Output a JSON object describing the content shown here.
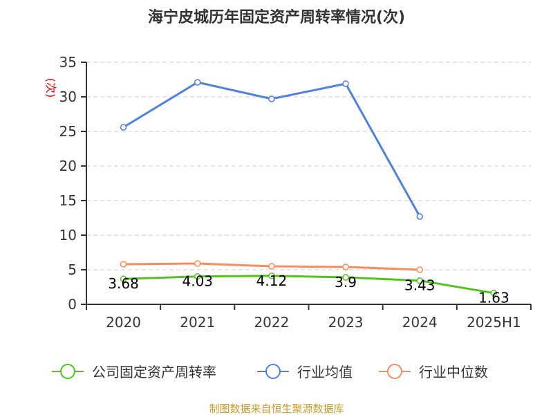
{
  "chart_data": {
    "type": "line",
    "title": "海宁皮城历年固定资产周转率情况(次)",
    "ylabel": "(次)",
    "xlabel": "",
    "categories": [
      "2020",
      "2021",
      "2022",
      "2023",
      "2024",
      "2025H1"
    ],
    "ylim": [
      0,
      35
    ],
    "yticks": [
      0,
      5,
      10,
      15,
      20,
      25,
      30,
      35
    ],
    "grid": true,
    "legend_position": "bottom",
    "series": [
      {
        "name": "公司固定资产周转率",
        "color": "#52c41a",
        "values": [
          3.68,
          4.03,
          4.12,
          3.9,
          3.43,
          1.63
        ],
        "labels": [
          "3.68",
          "4.03",
          "4.12",
          "3.9",
          "3.43",
          "1.63"
        ]
      },
      {
        "name": "行业均值",
        "color": "#4e80e0",
        "values": [
          25.6,
          32.1,
          29.7,
          31.9,
          12.7,
          null
        ]
      },
      {
        "name": "行业中位数",
        "color": "#fa8c5a",
        "values": [
          5.8,
          5.9,
          5.5,
          5.4,
          5.0,
          null
        ]
      }
    ]
  },
  "source": "制图数据来自恒生聚源数据库"
}
